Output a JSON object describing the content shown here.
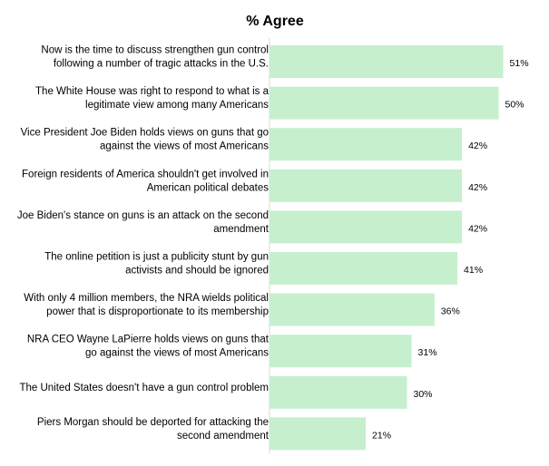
{
  "chart_data": {
    "type": "bar",
    "orientation": "horizontal",
    "title": "% Agree",
    "xlim": [
      0,
      60
    ],
    "categories": [
      [
        "Now is the time to discuss strengthen gun control",
        "following a number of tragic attacks in the U.S."
      ],
      [
        "The White House was right to respond to what is a",
        "legitimate view among many Americans"
      ],
      [
        "Vice President Joe Biden holds views on guns that go",
        "against the views of most Americans"
      ],
      [
        "Foreign residents of America shouldn't get involved in",
        "American political debates"
      ],
      [
        "Joe Biden's stance on guns is an attack on the second",
        "amendment"
      ],
      [
        "The online petition is just a publicity stunt by gun",
        "activists and should be ignored"
      ],
      [
        "With only 4 million members, the NRA wields political",
        "power that is disproportionate to its membership"
      ],
      [
        "NRA CEO Wayne LaPierre holds views on guns that",
        "go against the views of most Americans"
      ],
      [
        "The United States doesn't have a gun control problem"
      ],
      [
        "Piers Morgan should be deported for attacking the",
        "second amendment"
      ]
    ],
    "values": [
      51,
      50,
      42,
      42,
      42,
      41,
      36,
      31,
      30,
      21
    ],
    "data_labels": [
      "51%",
      "50%",
      "42%",
      "42%",
      "42%",
      "41%",
      "36%",
      "31%",
      "30%",
      "21%"
    ],
    "bar_color": "#c6efce",
    "grid": false,
    "legend": "none"
  }
}
